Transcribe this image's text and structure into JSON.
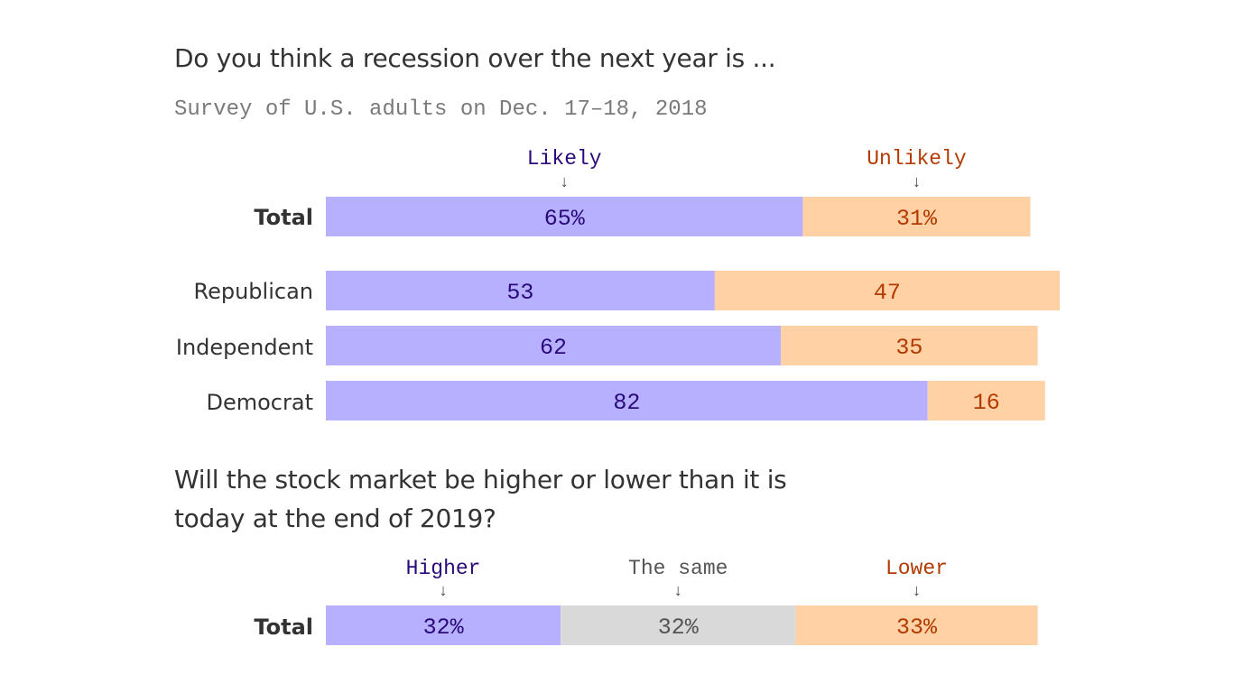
{
  "colors": {
    "likely": "#b6b0ff",
    "unlikely": "#ffd1a4",
    "same": "#d9d9d9",
    "likely_text": "#2a0a7a",
    "unlikely_text": "#b33a00",
    "same_text": "#555555",
    "arrow": "#444444"
  },
  "chart_data": [
    {
      "type": "bar",
      "orientation": "horizontal",
      "stacked": true,
      "title": "Do you think a recession over the next year is ...",
      "subtitle": "Survey of U.S. adults on Dec. 17–18, 2018",
      "legend": [
        "Likely",
        "Unlikely"
      ],
      "categories": [
        "Total",
        "Republican",
        "Independent",
        "Democrat"
      ],
      "series": [
        {
          "name": "Likely",
          "values": [
            65,
            53,
            62,
            82
          ],
          "labels": [
            "65%",
            "53",
            "62",
            "82"
          ]
        },
        {
          "name": "Unlikely",
          "values": [
            31,
            47,
            35,
            16
          ],
          "labels": [
            "31%",
            "47",
            "35",
            "16"
          ]
        }
      ],
      "xlim": [
        0,
        100
      ]
    },
    {
      "type": "bar",
      "orientation": "horizontal",
      "stacked": true,
      "title_lines": [
        "Will the stock market be higher or lower than it is",
        "today at the end of 2019?"
      ],
      "legend": [
        "Higher",
        "The same",
        "Lower"
      ],
      "categories": [
        "Total"
      ],
      "series": [
        {
          "name": "Higher",
          "values": [
            32
          ],
          "labels": [
            "32%"
          ]
        },
        {
          "name": "The same",
          "values": [
            32
          ],
          "labels": [
            "32%"
          ]
        },
        {
          "name": "Lower",
          "values": [
            33
          ],
          "labels": [
            "33%"
          ]
        }
      ],
      "xlim": [
        0,
        100
      ]
    }
  ]
}
